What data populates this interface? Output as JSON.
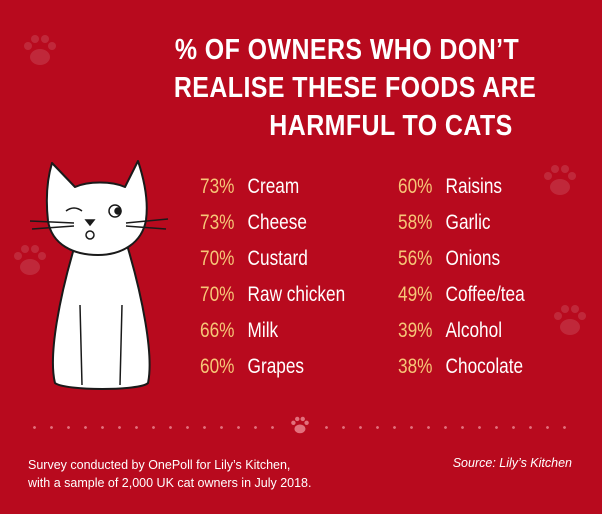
{
  "title_lines": [
    "% OF OWNERS WHO DON’T",
    "REALISE THESE FOODS ARE",
    "HARMFUL TO CATS"
  ],
  "left_items": [
    {
      "percent": "73%",
      "food": "Cream"
    },
    {
      "percent": "73%",
      "food": "Cheese"
    },
    {
      "percent": "70%",
      "food": "Custard"
    },
    {
      "percent": "70%",
      "food": "Raw chicken"
    },
    {
      "percent": "66%",
      "food": "Milk"
    },
    {
      "percent": "60%",
      "food": "Grapes"
    }
  ],
  "right_items": [
    {
      "percent": "60%",
      "food": "Raisins"
    },
    {
      "percent": "58%",
      "food": "Garlic"
    },
    {
      "percent": "56%",
      "food": "Onions"
    },
    {
      "percent": "49%",
      "food": "Coffee/tea"
    },
    {
      "percent": "39%",
      "food": "Alcohol"
    },
    {
      "percent": "38%",
      "food": "Chocolate"
    }
  ],
  "footer": {
    "line1": "Survey conducted by OnePoll for Lily’s Kitchen,",
    "line2": "with a sample of 2,000 UK cat owners in July 2018.",
    "source": "Source: Lily’s Kitchen"
  },
  "colors": {
    "background": "#b80a1e",
    "percent": "#f6c677",
    "text": "#ffffff"
  },
  "icons": [
    "cat-illustration",
    "paw-icon"
  ]
}
